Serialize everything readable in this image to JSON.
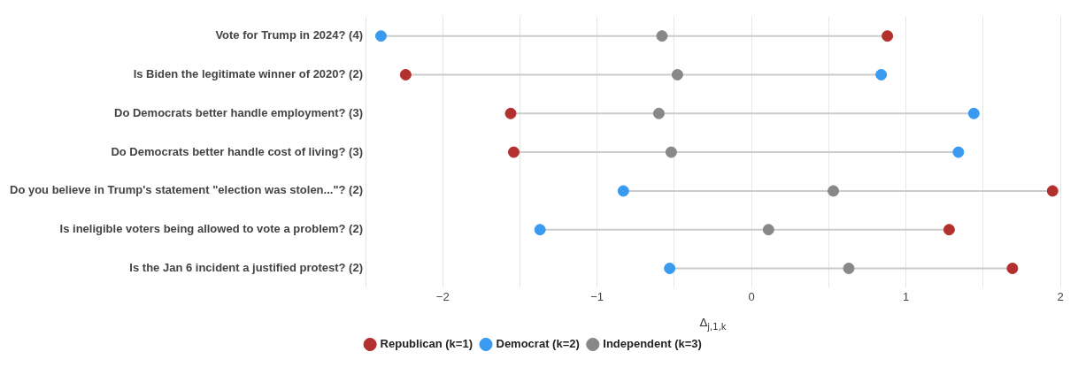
{
  "chart_data": {
    "type": "scatter",
    "orientation": "horizontal",
    "xlabel": "Δ$_{j,1,k}$",
    "categories": [
      "Vote for Trump in 2024? (4)",
      "Is Biden the legitimate winner of 2020? (2)",
      "Do Democrats better handle employment? (3)",
      "Do Democrats better handle cost of living? (3)",
      "Do you believe in Trump's statement \"election was stolen...\"? (2)",
      "Is ineligible voters being allowed to vote a problem? (2)",
      "Is the Jan 6 incident a justified protest? (2)"
    ],
    "series": [
      {
        "name": "Republican (k=1)",
        "color": "#b2302d",
        "values": [
          0.88,
          -2.24,
          -1.56,
          -1.54,
          1.95,
          1.28,
          1.69
        ]
      },
      {
        "name": "Democrat (k=2)",
        "color": "#3a9af0",
        "values": [
          -2.4,
          0.84,
          1.44,
          1.34,
          -0.83,
          -1.37,
          -0.53
        ]
      },
      {
        "name": "Independent (k=3)",
        "color": "#888888",
        "values": [
          -0.58,
          -0.48,
          -0.6,
          -0.52,
          0.53,
          0.11,
          0.63
        ]
      }
    ],
    "xlim": [
      -2.5,
      2.0
    ],
    "xticks": [
      {
        "value": -2.5,
        "label": null
      },
      {
        "value": -2,
        "label": "−2"
      },
      {
        "value": -1.5,
        "label": null
      },
      {
        "value": -1,
        "label": "−1"
      },
      {
        "value": -0.5,
        "label": null
      },
      0,
      {
        "value": 0.5,
        "label": null
      },
      1,
      {
        "value": 1.5,
        "label": null
      },
      2
    ],
    "grid": "x",
    "legend": "bottom",
    "marker": "circle"
  }
}
